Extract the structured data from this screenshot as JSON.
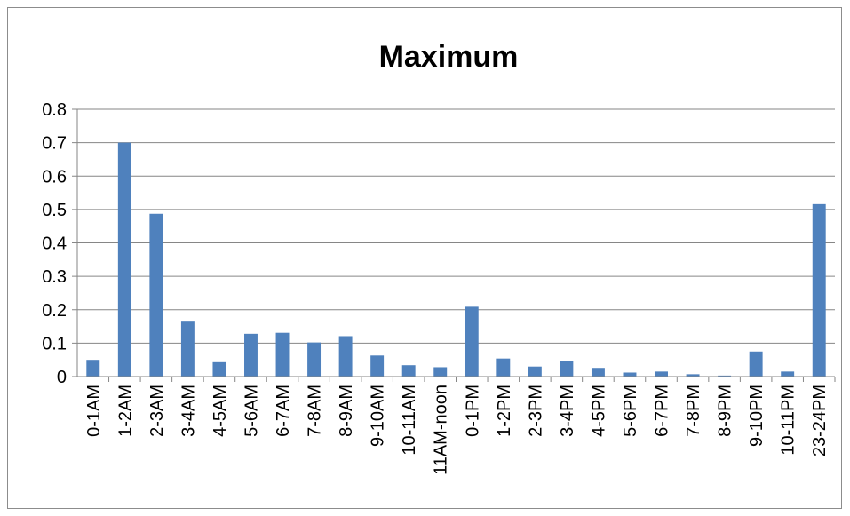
{
  "chart_data": {
    "type": "bar",
    "title": "Maximum",
    "xlabel": "",
    "ylabel": "",
    "ylim": [
      0,
      0.8
    ],
    "yticks": [
      "0",
      "0.1",
      "0.2",
      "0.3",
      "0.4",
      "0.5",
      "0.6",
      "0.7",
      "0.8"
    ],
    "grid": true,
    "legend": "none",
    "bar_color": "#4f81bd",
    "categories": [
      "0-1AM",
      "1-2AM",
      "2-3AM",
      "3-4AM",
      "4-5AM",
      "5-6AM",
      "6-7AM",
      "7-8AM",
      "8-9AM",
      "9-10AM",
      "10-11AM",
      "11AM-noon",
      "0-1PM",
      "1-2PM",
      "2-3PM",
      "3-4PM",
      "4-5PM",
      "5-6PM",
      "6-7PM",
      "7-8PM",
      "8-9PM",
      "9-10PM",
      "10-11PM",
      "23-24PM"
    ],
    "values": [
      0.05,
      0.7,
      0.487,
      0.167,
      0.043,
      0.128,
      0.131,
      0.102,
      0.121,
      0.063,
      0.034,
      0.028,
      0.209,
      0.054,
      0.03,
      0.047,
      0.026,
      0.012,
      0.015,
      0.007,
      0.003,
      0.075,
      0.015,
      0.516
    ]
  }
}
